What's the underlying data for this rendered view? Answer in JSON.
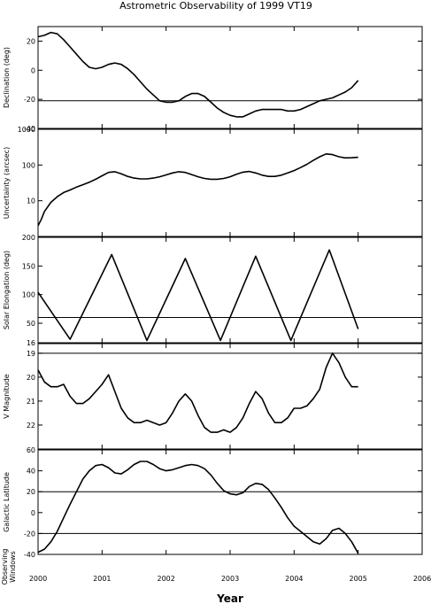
{
  "chart_data": {
    "type": "line",
    "title": "Astrometric Observability of 1999 VT19",
    "xlabel": "Year",
    "xlim": [
      2000,
      2006
    ],
    "xticks": [
      "2000",
      "2001",
      "2002",
      "2003",
      "2004",
      "2005",
      "2006"
    ],
    "panels": [
      {
        "ylabel": "Declination (deg)",
        "ylim": [
          -40,
          30
        ],
        "yscale": "linear",
        "yticks": [
          "20",
          "0",
          "-20",
          "-40"
        ],
        "threshold": -21,
        "series": [
          {
            "x": [
              2000.0,
              2000.1,
              2000.2,
              2000.3,
              2000.4,
              2000.5,
              2000.6,
              2000.7,
              2000.8,
              2000.9,
              2001.0,
              2001.1,
              2001.2,
              2001.3,
              2001.4,
              2001.5,
              2001.6,
              2001.7,
              2001.8,
              2001.9,
              2002.0,
              2002.1,
              2002.2,
              2002.3,
              2002.4,
              2002.5,
              2002.6,
              2002.7,
              2002.8,
              2002.9,
              2003.0,
              2003.1,
              2003.2,
              2003.3,
              2003.4,
              2003.5,
              2003.6,
              2003.7,
              2003.8,
              2003.9,
              2004.0,
              2004.1,
              2004.2,
              2004.3,
              2004.4,
              2004.5,
              2004.6,
              2004.7,
              2004.8,
              2004.9,
              2005.0
            ],
            "y": [
              23,
              24,
              26,
              25,
              21,
              16,
              11,
              6,
              2,
              1,
              2,
              4,
              5,
              4,
              1,
              -3,
              -8,
              -13,
              -17,
              -21,
              -22,
              -22,
              -21,
              -18,
              -16,
              -16,
              -18,
              -22,
              -26,
              -29,
              -31,
              -32,
              -32,
              -30,
              -28,
              -27,
              -27,
              -27,
              -27,
              -28,
              -28,
              -27,
              -25,
              -23,
              -21,
              -20,
              -19,
              -17,
              -15,
              -12,
              -7
            ]
          }
        ]
      },
      {
        "ylabel": "Uncertainty (arcsec)",
        "ylim": [
          1,
          1000
        ],
        "yscale": "log",
        "yticks": [
          "1000",
          "100",
          "10"
        ],
        "series": [
          {
            "x": [
              2000.0,
              2000.05,
              2000.1,
              2000.2,
              2000.3,
              2000.4,
              2000.5,
              2000.6,
              2000.7,
              2000.8,
              2000.9,
              2001.0,
              2001.1,
              2001.2,
              2001.3,
              2001.4,
              2001.5,
              2001.6,
              2001.7,
              2001.8,
              2001.9,
              2002.0,
              2002.1,
              2002.2,
              2002.3,
              2002.4,
              2002.5,
              2002.6,
              2002.7,
              2002.8,
              2002.9,
              2003.0,
              2003.1,
              2003.2,
              2003.3,
              2003.4,
              2003.5,
              2003.6,
              2003.7,
              2003.8,
              2003.9,
              2004.0,
              2004.1,
              2004.2,
              2004.3,
              2004.4,
              2004.5,
              2004.6,
              2004.7,
              2004.8,
              2004.9,
              2005.0
            ],
            "y": [
              2,
              3,
              5,
              9,
              13,
              17,
              20,
              24,
              28,
              33,
              40,
              50,
              62,
              65,
              57,
              48,
              43,
              41,
              41,
              43,
              47,
              53,
              60,
              65,
              62,
              54,
              47,
              42,
              40,
              40,
              42,
              47,
              55,
              63,
              66,
              60,
              52,
              48,
              48,
              52,
              60,
              70,
              85,
              105,
              135,
              170,
              205,
              195,
              170,
              158,
              160,
              165
            ]
          }
        ]
      },
      {
        "ylabel": "Solar Elongation (deg)",
        "ylim": [
          16,
          200
        ],
        "yscale": "linear",
        "yticks": [
          "200",
          "150",
          "100",
          "50",
          "16"
        ],
        "threshold": 60,
        "series": [
          {
            "x": [
              2000.0,
              2000.5,
              2001.15,
              2001.7,
              2002.3,
              2002.85,
              2003.4,
              2003.95,
              2004.55,
              2005.0
            ],
            "y": [
              104,
              22,
              170,
              20,
              163,
              20,
              167,
              20,
              178,
              40
            ]
          }
        ]
      },
      {
        "ylabel": "V Magnitude",
        "ylim": [
          23,
          18.6
        ],
        "yscale": "linear",
        "yticks": [
          "19",
          "20",
          "21",
          "22"
        ],
        "threshold": 19,
        "series": [
          {
            "x": [
              2000.0,
              2000.1,
              2000.2,
              2000.3,
              2000.4,
              2000.5,
              2000.6,
              2000.7,
              2000.8,
              2000.9,
              2001.0,
              2001.1,
              2001.2,
              2001.3,
              2001.4,
              2001.5,
              2001.6,
              2001.7,
              2001.8,
              2001.9,
              2002.0,
              2002.1,
              2002.2,
              2002.3,
              2002.4,
              2002.5,
              2002.6,
              2002.7,
              2002.8,
              2002.9,
              2003.0,
              2003.1,
              2003.2,
              2003.3,
              2003.4,
              2003.5,
              2003.6,
              2003.7,
              2003.8,
              2003.9,
              2004.0,
              2004.1,
              2004.2,
              2004.3,
              2004.4,
              2004.5,
              2004.6,
              2004.7,
              2004.8,
              2004.9,
              2005.0
            ],
            "y": [
              19.7,
              20.2,
              20.4,
              20.4,
              20.3,
              20.8,
              21.1,
              21.1,
              20.9,
              20.6,
              20.3,
              19.9,
              20.6,
              21.3,
              21.7,
              21.9,
              21.9,
              21.8,
              21.9,
              22.0,
              21.9,
              21.5,
              21.0,
              20.7,
              21.0,
              21.6,
              22.1,
              22.3,
              22.3,
              22.2,
              22.3,
              22.1,
              21.7,
              21.1,
              20.6,
              20.9,
              21.5,
              21.9,
              21.9,
              21.7,
              21.3,
              21.3,
              21.2,
              20.9,
              20.5,
              19.6,
              19.0,
              19.4,
              20.0,
              20.4,
              20.4
            ]
          }
        ]
      },
      {
        "ylabel": "Galactic Latitude",
        "ylim": [
          -40,
          60
        ],
        "yscale": "linear",
        "yticks": [
          "60",
          "40",
          "20",
          "0",
          "-20",
          "-40"
        ],
        "threshold_upper": 20,
        "threshold_lower": -20,
        "series": [
          {
            "x": [
              2000.0,
              2000.1,
              2000.2,
              2000.3,
              2000.4,
              2000.5,
              2000.6,
              2000.7,
              2000.8,
              2000.9,
              2001.0,
              2001.1,
              2001.2,
              2001.3,
              2001.4,
              2001.5,
              2001.6,
              2001.7,
              2001.8,
              2001.9,
              2002.0,
              2002.1,
              2002.2,
              2002.3,
              2002.4,
              2002.5,
              2002.6,
              2002.7,
              2002.8,
              2002.9,
              2003.0,
              2003.1,
              2003.2,
              2003.3,
              2003.4,
              2003.5,
              2003.6,
              2003.7,
              2003.8,
              2003.9,
              2004.0,
              2004.1,
              2004.2,
              2004.3,
              2004.4,
              2004.5,
              2004.6,
              2004.7,
              2004.8,
              2004.9,
              2005.0
            ],
            "y": [
              -38,
              -35,
              -28,
              -18,
              -5,
              8,
              20,
              32,
              40,
              45,
              46,
              43,
              38,
              37,
              41,
              46,
              49,
              49,
              46,
              42,
              40,
              41,
              43,
              45,
              46,
              45,
              42,
              36,
              28,
              21,
              18,
              17,
              19,
              25,
              28,
              27,
              22,
              14,
              5,
              -5,
              -13,
              -18,
              -23,
              -28,
              -30,
              -25,
              -17,
              -15,
              -20,
              -28,
              -39
            ]
          }
        ]
      }
    ],
    "windows_label": "Observing Windows"
  }
}
